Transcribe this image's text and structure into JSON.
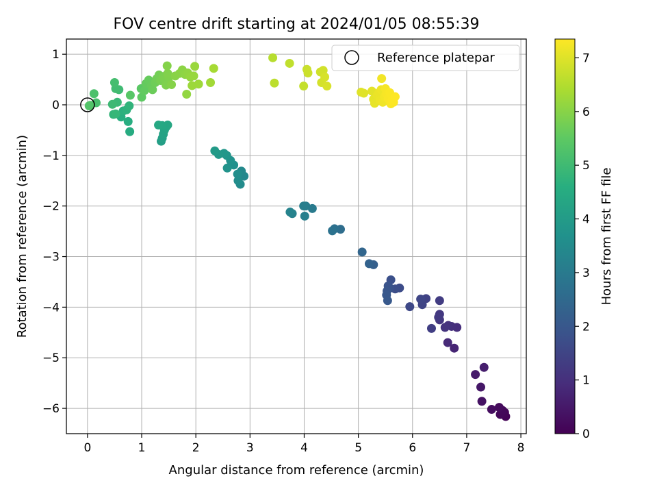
{
  "chart_data": {
    "type": "scatter",
    "title": "FOV centre drift starting at 2024/01/05 08:55:39",
    "xlabel": "Angular distance from reference (arcmin)",
    "ylabel": "Rotation from reference (arcmin)",
    "xlim": [
      -0.39,
      8.1
    ],
    "ylim": [
      -6.5,
      1.3
    ],
    "xticks": [
      0,
      1,
      2,
      3,
      4,
      5,
      6,
      7,
      8
    ],
    "yticks": [
      1,
      0,
      -1,
      -2,
      -3,
      -4,
      -5,
      -6
    ],
    "grid": true,
    "colormap": "viridis",
    "colorbar": {
      "label": "Hours from first FF file",
      "range": [
        0,
        7.35
      ],
      "ticks": [
        0,
        1,
        2,
        3,
        4,
        5,
        6,
        7
      ]
    },
    "legend": {
      "position": "top-right",
      "label": "Reference platepar"
    },
    "reference_point": {
      "x": 0,
      "y": 0
    },
    "points": [
      [
        7.72,
        -6.16,
        0.05
      ],
      [
        7.7,
        -6.08,
        0.08
      ],
      [
        7.62,
        -6.12,
        0.12
      ],
      [
        7.66,
        -6.04,
        0.15
      ],
      [
        7.6,
        -5.98,
        0.2
      ],
      [
        7.46,
        -6.02,
        0.25
      ],
      [
        7.28,
        -5.86,
        0.35
      ],
      [
        7.26,
        -5.58,
        0.45
      ],
      [
        7.16,
        -5.33,
        0.55
      ],
      [
        7.32,
        -5.19,
        0.6
      ],
      [
        6.77,
        -4.81,
        0.75
      ],
      [
        6.65,
        -4.7,
        0.85
      ],
      [
        6.82,
        -4.4,
        0.95
      ],
      [
        6.72,
        -4.38,
        1.0
      ],
      [
        6.66,
        -4.36,
        1.05
      ],
      [
        6.6,
        -4.4,
        1.1
      ],
      [
        6.5,
        -4.25,
        1.15
      ],
      [
        6.5,
        -4.14,
        1.2
      ],
      [
        6.48,
        -4.2,
        1.25
      ],
      [
        6.5,
        -3.87,
        1.3
      ],
      [
        6.35,
        -4.42,
        1.35
      ],
      [
        6.25,
        -3.83,
        1.45
      ],
      [
        6.18,
        -3.95,
        1.5
      ],
      [
        6.15,
        -3.84,
        1.55
      ],
      [
        5.95,
        -3.99,
        1.6
      ],
      [
        5.76,
        -3.62,
        1.7
      ],
      [
        5.68,
        -3.64,
        1.75
      ],
      [
        5.6,
        -3.46,
        1.8
      ],
      [
        5.58,
        -3.62,
        1.85
      ],
      [
        5.55,
        -3.58,
        1.9
      ],
      [
        5.53,
        -3.68,
        1.95
      ],
      [
        5.52,
        -3.76,
        2.0
      ],
      [
        5.54,
        -3.87,
        2.05
      ],
      [
        5.28,
        -3.16,
        2.2
      ],
      [
        5.2,
        -3.14,
        2.3
      ],
      [
        5.07,
        -2.91,
        2.4
      ],
      [
        4.67,
        -2.46,
        2.6
      ],
      [
        4.56,
        -2.45,
        2.7
      ],
      [
        4.52,
        -2.49,
        2.75
      ],
      [
        4.15,
        -2.05,
        3.0
      ],
      [
        4.03,
        -2.0,
        3.05
      ],
      [
        3.99,
        -2.0,
        3.1
      ],
      [
        4.01,
        -2.2,
        3.15
      ],
      [
        3.78,
        -2.15,
        3.2
      ],
      [
        3.74,
        -2.12,
        3.25
      ],
      [
        2.89,
        -1.41,
        3.4
      ],
      [
        2.84,
        -1.31,
        3.45
      ],
      [
        2.82,
        -1.57,
        3.5
      ],
      [
        2.78,
        -1.5,
        3.55
      ],
      [
        2.77,
        -1.37,
        3.6
      ],
      [
        2.7,
        -1.19,
        3.65
      ],
      [
        2.64,
        -1.1,
        3.7
      ],
      [
        2.58,
        -1.25,
        3.75
      ],
      [
        2.57,
        -1.0,
        3.8
      ],
      [
        2.52,
        -0.96,
        3.85
      ],
      [
        2.42,
        -0.98,
        3.9
      ],
      [
        2.35,
        -0.91,
        3.95
      ],
      [
        1.36,
        -0.72,
        4.1
      ],
      [
        1.38,
        -0.66,
        4.15
      ],
      [
        1.4,
        -0.58,
        4.2
      ],
      [
        1.42,
        -0.5,
        4.25
      ],
      [
        1.45,
        -0.44,
        4.3
      ],
      [
        1.48,
        -0.4,
        4.35
      ],
      [
        1.38,
        -0.41,
        4.38
      ],
      [
        1.31,
        -0.4,
        4.4
      ],
      [
        0.78,
        -0.53,
        4.5
      ],
      [
        0.75,
        -0.33,
        4.55
      ],
      [
        0.62,
        -0.24,
        4.6
      ],
      [
        0.66,
        -0.12,
        4.65
      ],
      [
        0.72,
        -0.1,
        4.7
      ],
      [
        0.77,
        -0.02,
        4.75
      ],
      [
        0.48,
        -0.19,
        4.8
      ],
      [
        0.52,
        -0.18,
        4.85
      ],
      [
        0.55,
        0.05,
        4.9
      ],
      [
        0.46,
        0.01,
        4.95
      ],
      [
        0.58,
        0.3,
        5.0
      ],
      [
        0.52,
        0.32,
        5.05
      ],
      [
        0.5,
        0.44,
        5.1
      ],
      [
        0.16,
        0.04,
        5.15
      ],
      [
        0.12,
        0.22,
        5.2
      ],
      [
        0.05,
        -0.01,
        5.25
      ],
      [
        0.03,
        -0.02,
        5.3
      ],
      [
        0.79,
        0.19,
        5.4
      ],
      [
        0.99,
        0.32,
        5.45
      ],
      [
        1.0,
        0.15,
        5.5
      ],
      [
        1.05,
        0.28,
        5.55
      ],
      [
        1.08,
        0.42,
        5.58
      ],
      [
        1.13,
        0.49,
        5.6
      ],
      [
        1.18,
        0.38,
        5.63
      ],
      [
        1.2,
        0.3,
        5.66
      ],
      [
        1.25,
        0.44,
        5.7
      ],
      [
        1.28,
        0.52,
        5.73
      ],
      [
        1.32,
        0.59,
        5.76
      ],
      [
        1.35,
        0.48,
        5.8
      ],
      [
        1.4,
        0.56,
        5.83
      ],
      [
        1.42,
        0.51,
        5.86
      ],
      [
        1.45,
        0.39,
        5.88
      ],
      [
        1.5,
        0.54,
        5.9
      ],
      [
        1.48,
        0.62,
        5.92
      ],
      [
        1.47,
        0.77,
        5.95
      ],
      [
        1.55,
        0.4,
        5.97
      ],
      [
        1.62,
        0.57,
        6.0
      ],
      [
        1.7,
        0.62,
        6.02
      ],
      [
        1.75,
        0.69,
        6.05
      ],
      [
        1.8,
        0.6,
        6.07
      ],
      [
        1.85,
        0.63,
        6.1
      ],
      [
        1.83,
        0.21,
        6.12
      ],
      [
        1.9,
        0.55,
        6.15
      ],
      [
        1.96,
        0.57,
        6.17
      ],
      [
        1.98,
        0.76,
        6.2
      ],
      [
        1.93,
        0.38,
        6.23
      ],
      [
        2.05,
        0.41,
        6.25
      ],
      [
        2.27,
        0.44,
        6.3
      ],
      [
        2.33,
        0.72,
        6.35
      ],
      [
        3.42,
        0.93,
        6.55
      ],
      [
        3.45,
        0.43,
        6.6
      ],
      [
        3.73,
        0.82,
        6.65
      ],
      [
        3.99,
        0.37,
        6.7
      ],
      [
        4.05,
        0.7,
        6.75
      ],
      [
        4.07,
        0.63,
        6.78
      ],
      [
        4.3,
        0.65,
        6.82
      ],
      [
        4.35,
        0.68,
        6.85
      ],
      [
        4.32,
        0.44,
        6.88
      ],
      [
        4.38,
        0.55,
        6.9
      ],
      [
        4.42,
        0.37,
        6.93
      ],
      [
        5.05,
        0.25,
        7.0
      ],
      [
        5.1,
        0.23,
        7.02
      ],
      [
        5.25,
        0.27,
        7.05
      ],
      [
        5.28,
        0.11,
        7.07
      ],
      [
        5.3,
        0.03,
        7.1
      ],
      [
        5.35,
        0.19,
        7.12
      ],
      [
        5.38,
        0.24,
        7.14
      ],
      [
        5.4,
        0.09,
        7.16
      ],
      [
        5.42,
        0.3,
        7.18
      ],
      [
        5.45,
        0.05,
        7.2
      ],
      [
        5.43,
        0.52,
        7.22
      ],
      [
        5.48,
        0.16,
        7.24
      ],
      [
        5.5,
        0.32,
        7.26
      ],
      [
        5.52,
        0.22,
        7.28
      ],
      [
        5.55,
        0.12,
        7.3
      ],
      [
        5.58,
        0.24,
        7.31
      ],
      [
        5.6,
        0.02,
        7.32
      ],
      [
        5.62,
        0.09,
        7.33
      ],
      [
        5.65,
        0.05,
        7.34
      ],
      [
        5.68,
        0.16,
        7.35
      ]
    ]
  }
}
